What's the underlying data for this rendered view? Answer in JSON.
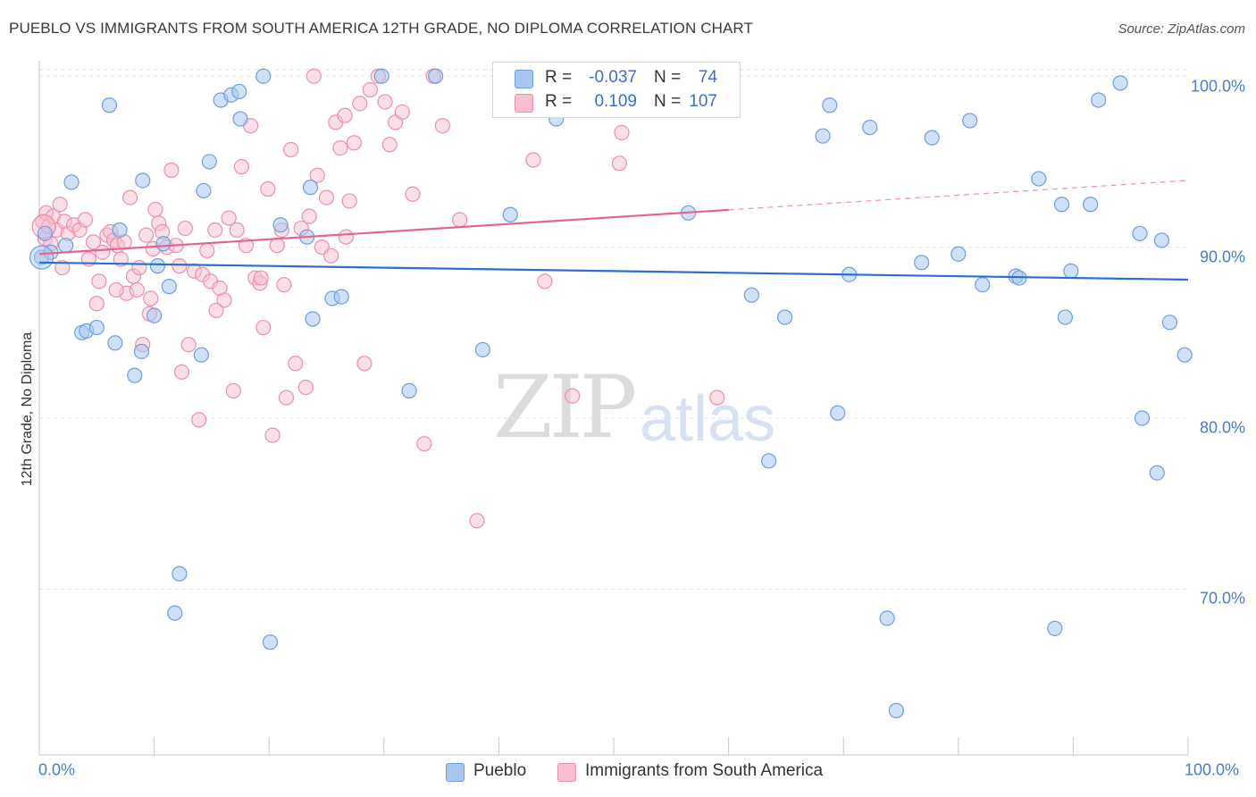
{
  "header": {
    "title": "PUEBLO VS IMMIGRANTS FROM SOUTH AMERICA 12TH GRADE, NO DIPLOMA CORRELATION CHART",
    "source": "Source: ZipAtlas.com"
  },
  "stats": {
    "rows": [
      {
        "r_label": "R =",
        "r_value": "-0.037",
        "n_label": "N =",
        "n_value": "74"
      },
      {
        "r_label": "R =",
        "r_value": "0.109",
        "n_label": "N =",
        "n_value": "107"
      }
    ]
  },
  "watermark": {
    "zip": "ZIP",
    "atlas": "atlas"
  },
  "legend": {
    "items": [
      {
        "label": "Pueblo"
      },
      {
        "label": "Immigrants from South America"
      }
    ]
  },
  "colors": {
    "pueblo_fill": "#a9c6ef",
    "pueblo_stroke": "#6e9ee0",
    "pueblo_line": "#2b6fd1",
    "immig_fill": "#f7bfd0",
    "immig_stroke": "#ec8fae",
    "immig_line": "#e5648f",
    "grid": "#e3e3e3",
    "tick_text": "#4a7cc9"
  },
  "chart_data": {
    "type": "scatter",
    "title": "PUEBLO VS IMMIGRANTS FROM SOUTH AMERICA 12TH GRADE, NO DIPLOMA CORRELATION CHART",
    "xlabel": "",
    "ylabel": "12th Grade, No Diploma",
    "xlim": [
      0,
      100
    ],
    "ylim": [
      60.3,
      100.9
    ],
    "x_tick_labels": [
      "0.0%",
      "100.0%"
    ],
    "y_ticks": [
      70,
      80,
      90,
      100
    ],
    "y_tick_labels": [
      "70.0%",
      "80.0%",
      "90.0%",
      "100.0%"
    ],
    "grid": true,
    "legend_position": "bottom-center",
    "series": [
      {
        "name": "Pueblo",
        "R": -0.037,
        "N": 74,
        "trend": {
          "x": [
            0,
            100
          ],
          "y": [
            89.1,
            88.1
          ],
          "solid_to": 100
        },
        "points": [
          [
            0.2,
            89.4
          ],
          [
            0.5,
            90.8
          ],
          [
            1.0,
            89.7
          ],
          [
            2.3,
            90.1
          ],
          [
            2.8,
            93.8
          ],
          [
            3.7,
            85.0
          ],
          [
            4.1,
            85.1
          ],
          [
            5.0,
            85.3
          ],
          [
            6.1,
            98.3
          ],
          [
            6.6,
            84.4
          ],
          [
            7.0,
            91.0
          ],
          [
            8.3,
            82.5
          ],
          [
            8.9,
            83.9
          ],
          [
            9.0,
            93.9
          ],
          [
            10.0,
            86.0
          ],
          [
            10.3,
            88.9
          ],
          [
            10.8,
            90.2
          ],
          [
            11.3,
            87.7
          ],
          [
            11.8,
            68.6
          ],
          [
            12.2,
            70.9
          ],
          [
            14.1,
            83.7
          ],
          [
            14.3,
            93.3
          ],
          [
            14.8,
            95.0
          ],
          [
            15.8,
            98.6
          ],
          [
            16.7,
            98.9
          ],
          [
            17.4,
            99.1
          ],
          [
            17.5,
            97.5
          ],
          [
            19.5,
            100.0
          ],
          [
            20.1,
            66.9
          ],
          [
            21.0,
            91.3
          ],
          [
            23.3,
            90.6
          ],
          [
            23.6,
            93.5
          ],
          [
            23.8,
            85.8
          ],
          [
            25.5,
            87.0
          ],
          [
            26.3,
            87.1
          ],
          [
            29.8,
            100.0
          ],
          [
            32.2,
            81.6
          ],
          [
            34.5,
            100.0
          ],
          [
            38.6,
            84.0
          ],
          [
            41.0,
            91.9
          ],
          [
            45.0,
            97.5
          ],
          [
            46.5,
            100.0
          ],
          [
            56.5,
            92.0
          ],
          [
            62.0,
            87.2
          ],
          [
            63.5,
            77.5
          ],
          [
            64.9,
            85.9
          ],
          [
            68.2,
            96.5
          ],
          [
            68.8,
            98.3
          ],
          [
            69.5,
            80.3
          ],
          [
            70.5,
            88.4
          ],
          [
            72.3,
            97.0
          ],
          [
            73.8,
            68.3
          ],
          [
            74.6,
            62.9
          ],
          [
            76.8,
            89.1
          ],
          [
            77.7,
            96.4
          ],
          [
            80.0,
            89.6
          ],
          [
            81.0,
            97.4
          ],
          [
            82.1,
            87.8
          ],
          [
            85.0,
            88.3
          ],
          [
            85.3,
            88.2
          ],
          [
            87.0,
            94.0
          ],
          [
            88.4,
            67.7
          ],
          [
            89.0,
            92.5
          ],
          [
            89.3,
            85.9
          ],
          [
            89.8,
            88.6
          ],
          [
            91.5,
            92.5
          ],
          [
            92.2,
            98.6
          ],
          [
            94.1,
            99.6
          ],
          [
            95.8,
            90.8
          ],
          [
            96.0,
            80.0
          ],
          [
            97.3,
            76.8
          ],
          [
            97.7,
            90.4
          ],
          [
            98.4,
            85.6
          ],
          [
            99.7,
            83.7
          ]
        ]
      },
      {
        "name": "Immigrants from South America",
        "R": 0.109,
        "N": 107,
        "trend": {
          "x": [
            0,
            100
          ],
          "y": [
            89.6,
            93.9
          ],
          "solid_to": 60
        }
      }
    ]
  }
}
